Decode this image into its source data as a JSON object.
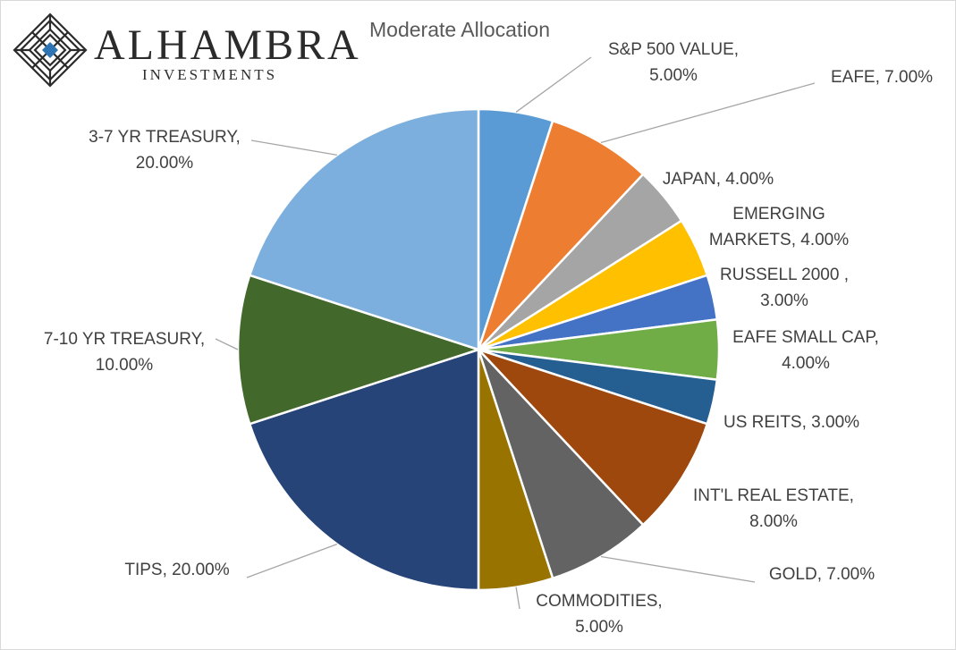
{
  "logo": {
    "name": "ALHAMBRA",
    "subtitle": "INVESTMENTS"
  },
  "chart_data": {
    "type": "pie",
    "title": "Moderate Allocation",
    "legend": "none",
    "slices": [
      {
        "name": "S&P 500 VALUE",
        "value": 5.0,
        "label": "5.00%",
        "color": "#5b9bd5"
      },
      {
        "name": "EAFE",
        "value": 7.0,
        "label": "7.00%",
        "color": "#ed7d31"
      },
      {
        "name": "JAPAN",
        "value": 4.0,
        "label": "4.00%",
        "color": "#a5a5a5"
      },
      {
        "name": "EMERGING MARKETS",
        "value": 4.0,
        "label": "4.00%",
        "color": "#ffc000"
      },
      {
        "name": "RUSSELL 2000 ",
        "value": 3.0,
        "label": "3.00%",
        "color": "#4472c4"
      },
      {
        "name": "EAFE SMALL CAP",
        "value": 4.0,
        "label": "4.00%",
        "color": "#70ad47"
      },
      {
        "name": "US REITS",
        "value": 3.0,
        "label": "3.00%",
        "color": "#255e91"
      },
      {
        "name": "INT'L REAL ESTATE",
        "value": 8.0,
        "label": "8.00%",
        "color": "#9e480e"
      },
      {
        "name": "GOLD",
        "value": 7.0,
        "label": "7.00%",
        "color": "#636363"
      },
      {
        "name": "COMMODITIES",
        "value": 5.0,
        "label": "5.00%",
        "color": "#997300"
      },
      {
        "name": "TIPS",
        "value": 20.0,
        "label": "20.00%",
        "color": "#264478"
      },
      {
        "name": "7-10 YR TREASURY",
        "value": 10.0,
        "label": "10.00%",
        "color": "#43682b"
      },
      {
        "name": "3-7 YR TREASURY",
        "value": 20.0,
        "label": "20.00%",
        "color": "#7cafdd"
      }
    ]
  }
}
